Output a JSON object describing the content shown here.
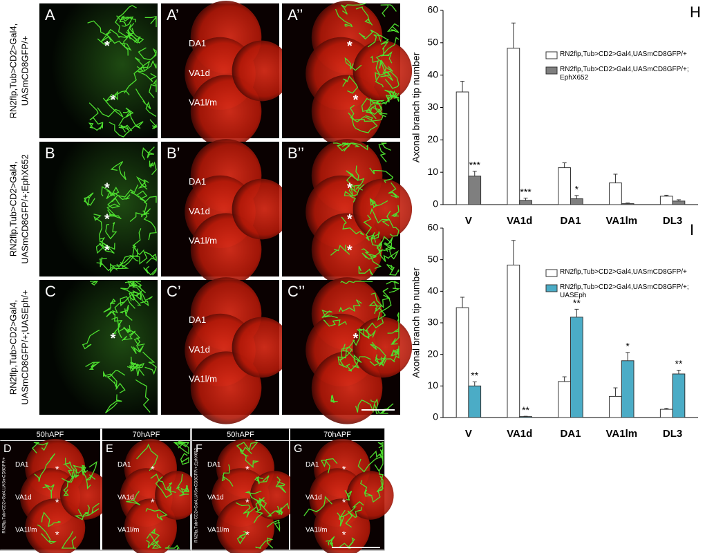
{
  "microscopy": {
    "row_labels": [
      [
        "RN2flp,Tub>CD2>Gal4,",
        "UASmCD8GFP/+"
      ],
      [
        "RN2flp,Tub>CD2>Gal4,",
        "UASmCD8GFP/+;EphX652"
      ],
      [
        "RN2flp,Tub>CD2>Gal4,",
        "UASmCD8GFP/+;UASEph/+"
      ]
    ],
    "panels": [
      {
        "letter": "A",
        "stars": [
          "*",
          "*"
        ]
      },
      {
        "letter": "A’",
        "labels": [
          "DA1",
          "VA1d",
          "VA1l/m"
        ]
      },
      {
        "letter": "A’’",
        "stars": [
          "*",
          "*"
        ]
      },
      {
        "letter": "B",
        "stars": [
          "*",
          "*",
          "*"
        ]
      },
      {
        "letter": "B’",
        "labels": [
          "DA1",
          "VA1d",
          "VA1l/m"
        ]
      },
      {
        "letter": "B’’",
        "stars": [
          "*",
          "*",
          "*"
        ]
      },
      {
        "letter": "C",
        "stars": [
          "*"
        ]
      },
      {
        "letter": "C’",
        "labels": [
          "DA1",
          "VA1d",
          "VA1l/m"
        ]
      },
      {
        "letter": "C’’",
        "stars": [
          "*"
        ]
      }
    ],
    "time_headers": [
      "50hAPF",
      "70hAPF",
      "50hAPF",
      "70hAPF"
    ],
    "bottom_panels": [
      {
        "letter": "D",
        "side_label": "RN2flp,Tub>CD2>Gal4,UASmCD8GFP/+",
        "labels": [
          "DA1",
          "VA1d",
          "VA1l/m"
        ],
        "stars": [
          "*",
          "*",
          "*"
        ]
      },
      {
        "letter": "E",
        "labels": [
          "DA1",
          "VA1d",
          "VA1l/m"
        ],
        "stars": [
          "*",
          "*"
        ]
      },
      {
        "letter": "F",
        "side_label": "RN2flp,Tub>CD2>Gal4,UASmCD8GFP/+;EphX652",
        "labels": [
          "DA1",
          "VA1d",
          "VA1l/m"
        ],
        "stars": [
          "*",
          "*",
          "*"
        ]
      },
      {
        "letter": "G",
        "labels": [
          "DA1",
          "VA1d",
          "VA1l/m"
        ],
        "stars": [
          "*",
          "*",
          "*"
        ]
      }
    ]
  },
  "chart_data": [
    {
      "type": "bar",
      "panel": "H",
      "y_label": "Axonal branch tip number",
      "categories": [
        "V",
        "VA1d",
        "DA1",
        "VA1lm",
        "DL3"
      ],
      "ylim": [
        0,
        60
      ],
      "yticks": [
        0,
        10,
        20,
        30,
        40,
        50,
        60
      ],
      "series": [
        {
          "name": "RN2flp,Tub>CD2>Gal4,UASmCD8GFP/+",
          "color": "#ffffff",
          "values": [
            34.8,
            48.3,
            11.4,
            6.7,
            2.6
          ],
          "errors": [
            3.3,
            7.8,
            1.5,
            2.7,
            0.3
          ]
        },
        {
          "name": "RN2flp,Tub>CD2>Gal4,UASmCD8GFP/+; EphX652",
          "color": "#7f7f7f",
          "values": [
            8.8,
            1.3,
            1.8,
            0.3,
            1.1
          ],
          "errors": [
            1.5,
            0.7,
            1.0,
            0.2,
            0.4
          ],
          "significance": [
            "***",
            "***",
            "*",
            null,
            null
          ]
        }
      ]
    },
    {
      "type": "bar",
      "panel": "I",
      "y_label": "Axonal branch tip number",
      "categories": [
        "V",
        "VA1d",
        "DA1",
        "VA1lm",
        "DL3"
      ],
      "ylim": [
        0,
        60
      ],
      "yticks": [
        0,
        10,
        20,
        30,
        40,
        50,
        60
      ],
      "series": [
        {
          "name": "RN2flp,Tub>CD2>Gal4,UASmCD8GFP/+",
          "color": "#ffffff",
          "values": [
            34.8,
            48.3,
            11.4,
            6.7,
            2.6
          ],
          "errors": [
            3.3,
            7.8,
            1.5,
            2.7,
            0.3
          ]
        },
        {
          "name": "RN2flp,Tub>CD2>Gal4,UASmCD8GFP/+; UASEph",
          "color": "#4bacc6",
          "values": [
            10.0,
            0.3,
            31.8,
            18.0,
            13.8
          ],
          "errors": [
            1.3,
            0.1,
            2.5,
            2.6,
            1.2
          ],
          "significance": [
            "**",
            "**",
            "**",
            "*",
            "**"
          ]
        }
      ]
    }
  ]
}
